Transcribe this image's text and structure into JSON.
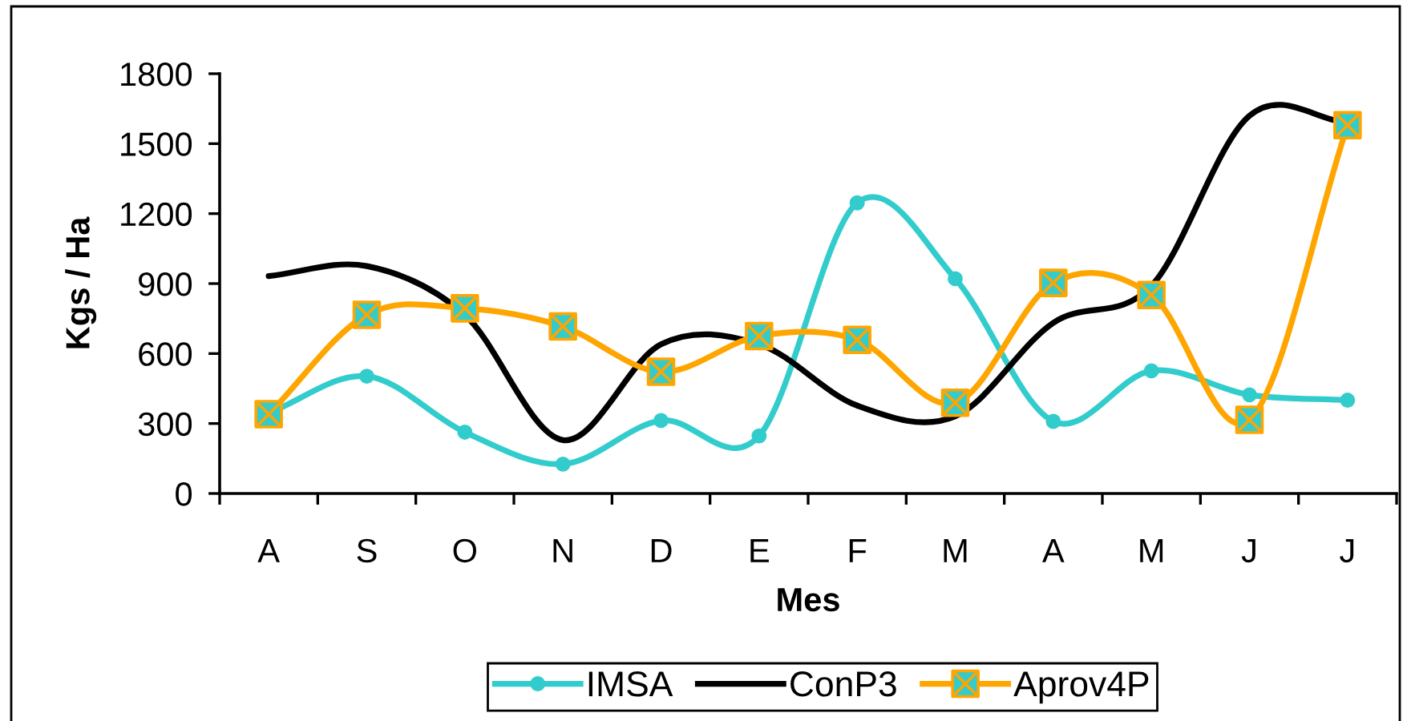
{
  "chart_data": {
    "type": "line",
    "xlabel": "Mes",
    "ylabel": "Kgs / Ha",
    "categories": [
      "A",
      "S",
      "O",
      "N",
      "D",
      "E",
      "F",
      "M",
      "A",
      "M",
      "J",
      "J"
    ],
    "ylim": [
      0,
      1800
    ],
    "yticks": [
      0,
      300,
      600,
      900,
      1200,
      1500,
      1800
    ],
    "grid": false,
    "legend": "bottom",
    "series": [
      {
        "name": "IMSA",
        "color": "#33cccc",
        "marker": "circle",
        "values": [
          345,
          503,
          263,
          126,
          313,
          247,
          1246,
          921,
          309,
          526,
          423,
          400
        ]
      },
      {
        "name": "ConP3",
        "color": "#000000",
        "marker": "none",
        "values": [
          932,
          975,
          766,
          229,
          640,
          640,
          377,
          331,
          732,
          890,
          1620,
          1590
        ]
      },
      {
        "name": "Aprov4P",
        "color": "#ffa500",
        "marker": "cross",
        "values": [
          340,
          766,
          794,
          716,
          522,
          675,
          659,
          389,
          903,
          851,
          316,
          1579
        ]
      }
    ]
  }
}
